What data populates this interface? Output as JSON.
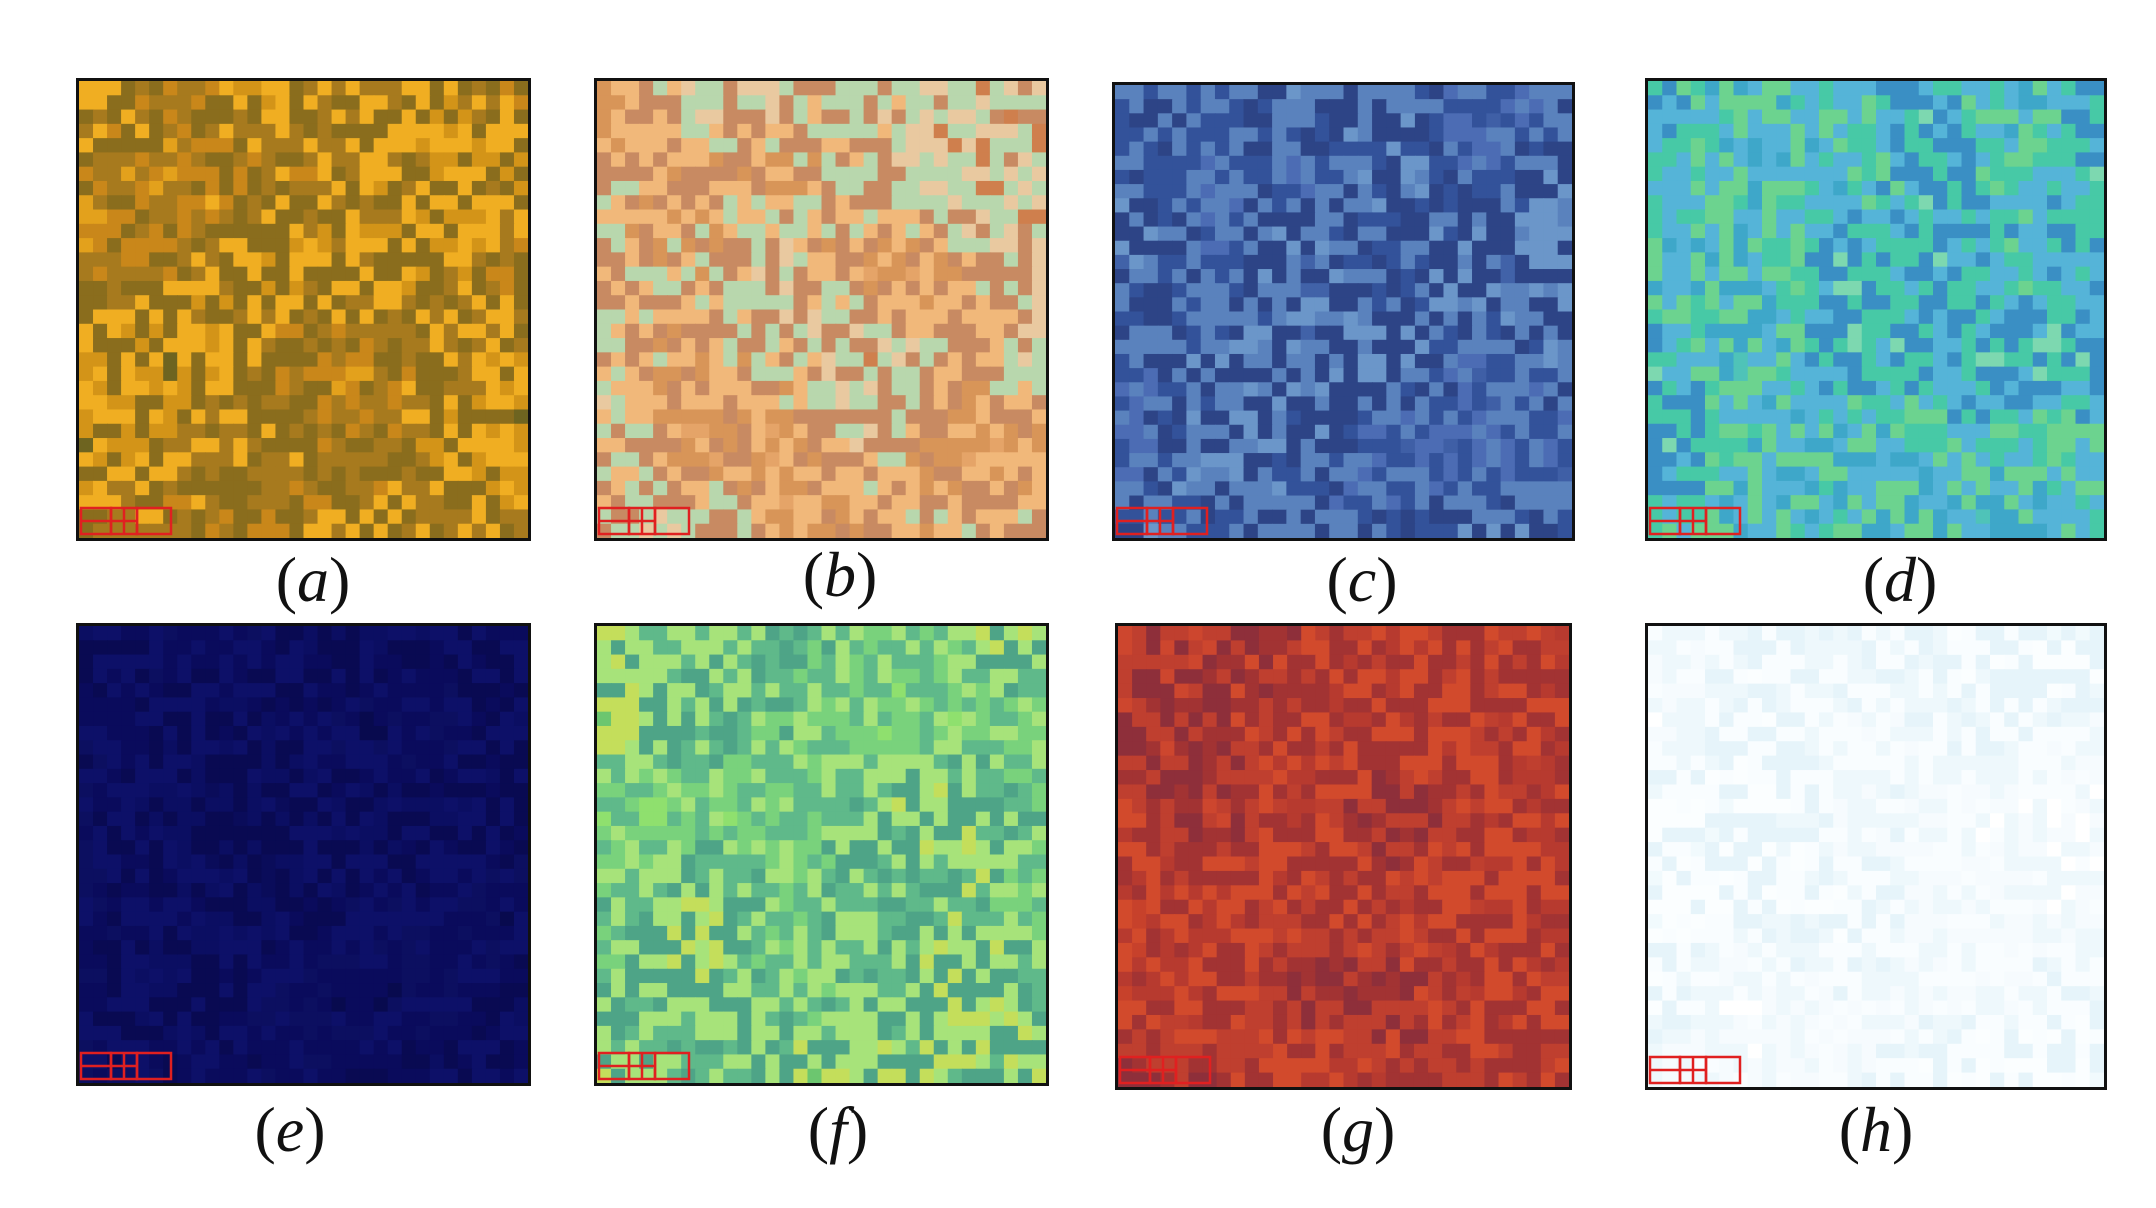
{
  "panels": [
    {
      "id": "a",
      "caption_open": "(",
      "caption_letter": "a",
      "caption_close": ")",
      "palette": [
        "#e3a11c",
        "#c9871a",
        "#a77a1e",
        "#8a6d1d",
        "#f0ae22",
        "#d39418",
        "#6e6420"
      ]
    },
    {
      "id": "b",
      "caption_open": "(",
      "caption_letter": "b",
      "caption_close": ")",
      "palette": [
        "#e5a468",
        "#d89558",
        "#f1b87a",
        "#c88a62",
        "#b8d7ad",
        "#e9c9a0",
        "#cf7f4d"
      ]
    },
    {
      "id": "c",
      "caption_open": "(",
      "caption_letter": "c",
      "caption_close": ")",
      "palette": [
        "#3f5fa6",
        "#4c6cb4",
        "#33529a",
        "#5a82bd",
        "#2d4486",
        "#6b96c9",
        "#4162a8"
      ]
    },
    {
      "id": "d",
      "caption_open": "(",
      "caption_letter": "d",
      "caption_close": ")",
      "palette": [
        "#4fc3b8",
        "#3ea7c9",
        "#6cd38f",
        "#55b4d8",
        "#47c9a6",
        "#3a8fc4",
        "#7dd8b0"
      ]
    },
    {
      "id": "e",
      "caption_open": "(",
      "caption_letter": "e",
      "caption_close": ")",
      "palette": [
        "#0a0c5a",
        "#0b0e62",
        "#090a52",
        "#0d1068",
        "#0a0b5c",
        "#0c0f60",
        "#080a4e"
      ]
    },
    {
      "id": "f",
      "caption_open": "(",
      "caption_letter": "f",
      "caption_close": ")",
      "palette": [
        "#8fe06e",
        "#79d27c",
        "#5fb98a",
        "#a7e37a",
        "#4ea487",
        "#c4de5b",
        "#6cc66f"
      ]
    },
    {
      "id": "g",
      "caption_open": "(",
      "caption_letter": "g",
      "caption_close": ")",
      "palette": [
        "#c7412b",
        "#b73a2f",
        "#d24a2c",
        "#a23333",
        "#bf3f2f",
        "#8e2f3a",
        "#cd462e"
      ]
    },
    {
      "id": "h",
      "caption_open": "(",
      "caption_letter": "h",
      "caption_close": ")",
      "palette": [
        "#ffffff",
        "#f6fbfe",
        "#eef8fc",
        "#f9fdff",
        "#e6f4fa",
        "#fbfeff",
        "#f1fafd"
      ]
    }
  ],
  "marker_color": "#e02020"
}
